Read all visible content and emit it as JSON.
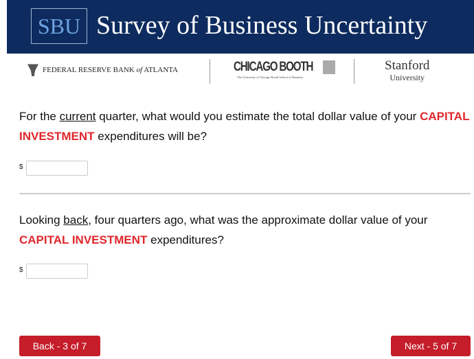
{
  "header": {
    "badge": "SBU",
    "title": "Survey of Business Uncertainty"
  },
  "logos": {
    "frb": {
      "before": "FEDERAL RESERVE BANK ",
      "italic": "of",
      "after": " ATLANTA"
    },
    "booth": {
      "name": "CHICAGO BOOTH",
      "tagline": "The University of Chicago Booth School of Business"
    },
    "stanford": {
      "name": "Stanford",
      "sub": "University"
    }
  },
  "questions": [
    {
      "parts": [
        "For the ",
        "current",
        " quarter, what would you estimate the total dollar value of your ",
        "CAPITAL INVESTMENT",
        " expenditures will be?"
      ],
      "currency": "$"
    },
    {
      "parts": [
        "Looking ",
        "back",
        ", four quarters ago, what was the approximate dollar value of your ",
        "CAPITAL INVESTMENT",
        " expenditures?"
      ],
      "currency": "$"
    }
  ],
  "buttons": {
    "back": "Back - 3 of 7",
    "next": "Next - 5 of 7"
  }
}
